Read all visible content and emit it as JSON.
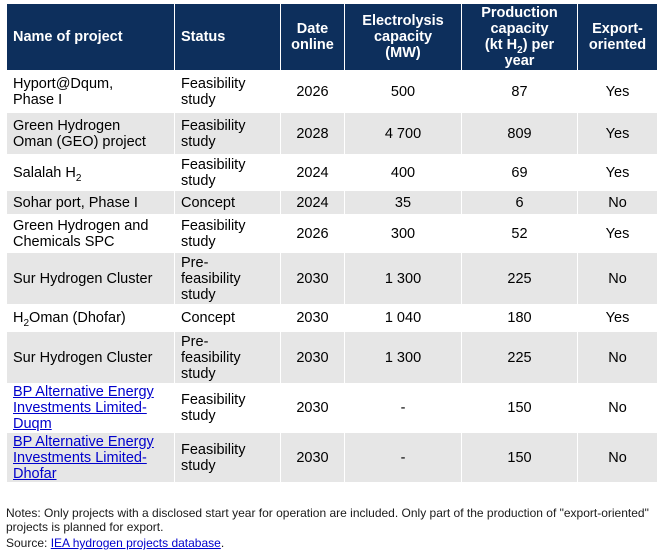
{
  "table": {
    "headers": {
      "name": "Name of project",
      "status": "Status",
      "date": [
        "Date",
        "online"
      ],
      "electrolysis": [
        "Electrolysis",
        "capacity",
        "(MW)"
      ],
      "production_pre": [
        "Production",
        "capacity",
        "(kt H"
      ],
      "production_sub": "2",
      "production_post": [
        ") per",
        "year"
      ],
      "export": [
        "Export-",
        "oriented"
      ]
    },
    "rows": [
      {
        "name": [
          "Hyport@Dqum,",
          "Phase I"
        ],
        "status": [
          "Feasibility",
          "study"
        ],
        "date": "2026",
        "electrolysis": "500",
        "production": "87",
        "export": "Yes"
      },
      {
        "name": [
          "Green Hydrogen",
          "Oman (GEO) project"
        ],
        "status": [
          "Feasibility",
          "study"
        ],
        "date": "2028",
        "electrolysis": "4 700",
        "production": "809",
        "export": "Yes"
      },
      {
        "name_pre": "Salalah H",
        "name_sub": "2",
        "status": [
          "Feasibility",
          "study"
        ],
        "date": "2024",
        "electrolysis": "400",
        "production": "69",
        "export": "Yes"
      },
      {
        "name": [
          "Sohar port, Phase I"
        ],
        "status": [
          "Concept"
        ],
        "date": "2024",
        "electrolysis": "35",
        "production": "6",
        "export": "No"
      },
      {
        "name": [
          "Green Hydrogen and",
          "Chemicals SPC"
        ],
        "status": [
          "Feasibility",
          "study"
        ],
        "date": "2026",
        "electrolysis": "300",
        "production": "52",
        "export": "Yes"
      },
      {
        "name": [
          "Sur Hydrogen Cluster"
        ],
        "status": [
          "Pre-",
          "feasibility",
          "study"
        ],
        "date": "2030",
        "electrolysis": "1 300",
        "production": "225",
        "export": "No"
      },
      {
        "name_pre": "H",
        "name_sub": "2",
        "name_post": "Oman (Dhofar)",
        "status": [
          "Concept"
        ],
        "date": "2030",
        "electrolysis": "1 040",
        "production": "180",
        "export": "Yes"
      },
      {
        "name": [
          "Sur Hydrogen Cluster"
        ],
        "status": [
          "Pre-",
          "feasibility",
          "study"
        ],
        "date": "2030",
        "electrolysis": "1 300",
        "production": "225",
        "export": "No"
      },
      {
        "name": [
          "BP Alternative Energy",
          "Investments Limited-",
          "Duqm"
        ],
        "status": [
          "Feasibility",
          "study"
        ],
        "date": "2030",
        "electrolysis": "-",
        "production": "150",
        "export": "No"
      },
      {
        "name": [
          "BP Alternative Energy",
          "Investments Limited-",
          "Dhofar"
        ],
        "status": [
          "Feasibility",
          "study"
        ],
        "date": "2030",
        "electrolysis": "-",
        "production": "150",
        "export": "No"
      }
    ]
  },
  "notes": [
    "Notes: Only projects with a disclosed start year for operation are included. Only part of the production of \"export-oriented\"",
    "projects is planned for export."
  ],
  "source": {
    "label": "Source: ",
    "link": "IEA hydrogen projects database",
    "end": "."
  },
  "colors": {
    "header_bg": "#0d2f5c",
    "row_alt_bg": "#e6e6e6",
    "link": "#0000cc"
  }
}
